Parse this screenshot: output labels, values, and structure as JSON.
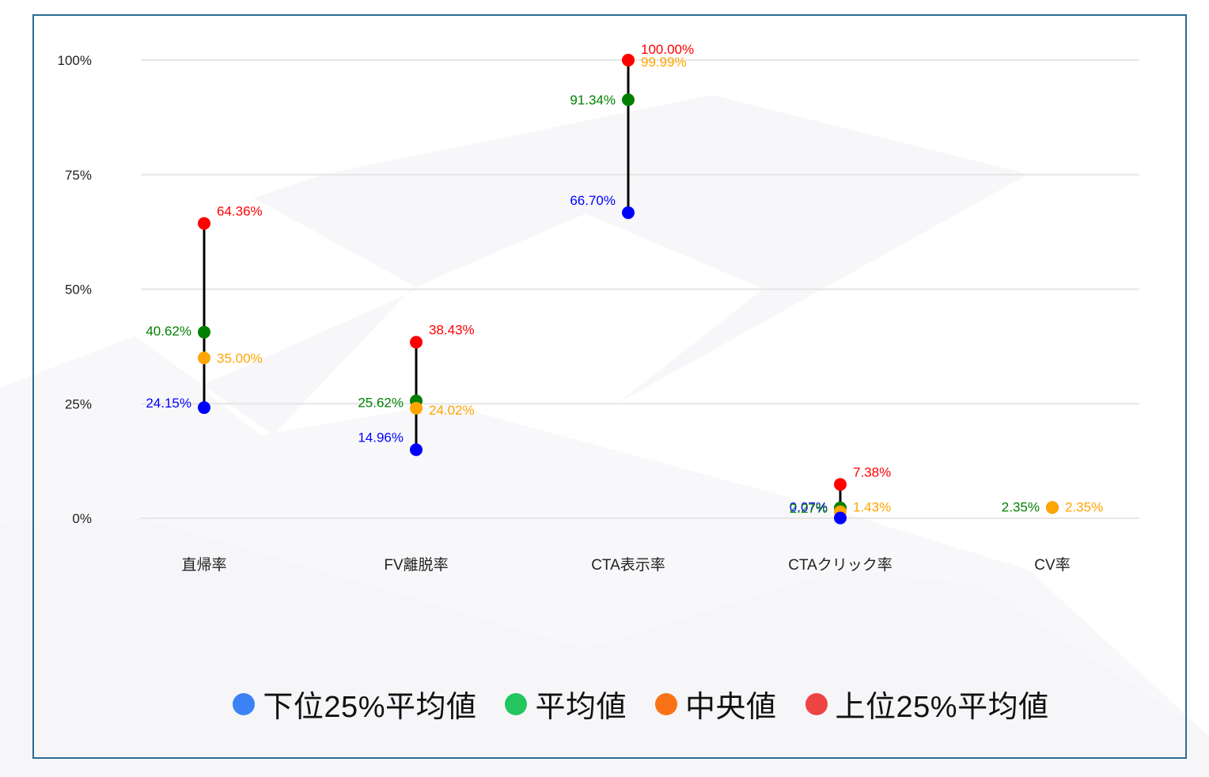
{
  "chart_data": {
    "type": "scatter",
    "subtype": "dot-range",
    "title": "",
    "xlabel": "",
    "ylabel": "",
    "ylim": [
      0,
      100
    ],
    "yticks": [
      "0%",
      "25%",
      "50%",
      "75%",
      "100%"
    ],
    "grid": true,
    "legend_position": "bottom",
    "categories": [
      "直帰率",
      "FV離脱率",
      "CTA表示率",
      "CTAクリック率",
      "CV率"
    ],
    "series": [
      {
        "name": "下位25%平均値",
        "color": "#0000ff",
        "legend_color": "#3b82f6",
        "values": [
          24.15,
          14.96,
          66.7,
          0.07,
          null
        ]
      },
      {
        "name": "平均値",
        "color": "#008000",
        "legend_color": "#22c55e",
        "values": [
          40.62,
          25.62,
          91.34,
          2.27,
          2.35
        ]
      },
      {
        "name": "中央値",
        "color": "#ffa500",
        "legend_color": "#f97316",
        "values": [
          35.0,
          24.02,
          99.99,
          1.43,
          2.35
        ]
      },
      {
        "name": "上位25%平均値",
        "color": "#ff0000",
        "legend_color": "#ef4444",
        "values": [
          64.36,
          38.43,
          100.0,
          7.38,
          null
        ]
      }
    ],
    "value_labels": {
      "0": {
        "low": "24.15%",
        "avg": "40.62%",
        "median": "35.00%",
        "high": "64.36%"
      },
      "1": {
        "low": "14.96%",
        "avg": "25.62%",
        "median": "24.02%",
        "high": "38.43%"
      },
      "2": {
        "low": "66.70%",
        "avg": "91.34%",
        "median": "99.99%",
        "high": "100.00%"
      },
      "3": {
        "low": "0.07%",
        "avg": "2.27%",
        "median": "1.43%",
        "high": "7.38%"
      },
      "4": {
        "avg": "2.35%",
        "median": "2.35%"
      }
    }
  },
  "legend": {
    "items": [
      {
        "label": "下位25%平均値",
        "color": "#3b82f6"
      },
      {
        "label": "平均値",
        "color": "#22c55e"
      },
      {
        "label": "中央値",
        "color": "#f97316"
      },
      {
        "label": "上位25%平均値",
        "color": "#ef4444"
      }
    ]
  }
}
